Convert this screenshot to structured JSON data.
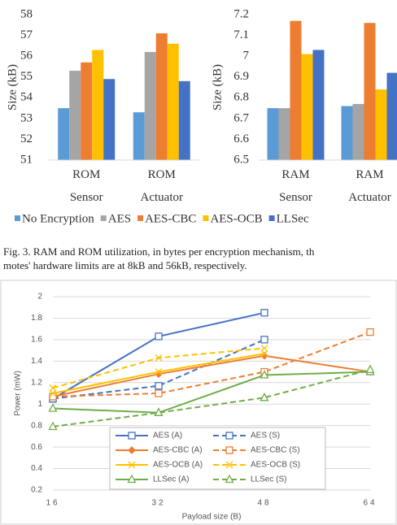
{
  "chart_data": [
    {
      "type": "bar",
      "ylabel": "Size (kB)",
      "categories": [
        "ROM\nSensor",
        "ROM\nActuator"
      ],
      "ylim": [
        51,
        58
      ],
      "yticks": [
        51,
        52,
        53,
        54,
        55,
        56,
        57,
        58
      ],
      "series": [
        {
          "name": "No Encryption",
          "color": "#5b9bd5",
          "values": [
            53.5,
            53.3
          ]
        },
        {
          "name": "AES",
          "color": "#a5a5a5",
          "values": [
            55.3,
            56.2
          ]
        },
        {
          "name": "AES-CBC",
          "color": "#ed7d31",
          "values": [
            55.7,
            57.1
          ]
        },
        {
          "name": "AES-OCB",
          "color": "#ffc000",
          "values": [
            56.3,
            56.6
          ]
        },
        {
          "name": "LLSec",
          "color": "#4472c4",
          "values": [
            54.9,
            54.8
          ]
        }
      ]
    },
    {
      "type": "bar",
      "ylabel": "Size (kB)",
      "categories": [
        "RAM\nSensor",
        "RAM\nActuator"
      ],
      "ylim": [
        6.5,
        7.2
      ],
      "yticks": [
        6.5,
        6.6,
        6.7,
        6.8,
        6.9,
        7,
        7.1,
        7.2
      ],
      "series": [
        {
          "color": "#5b9bd5",
          "values": [
            6.75,
            6.76
          ]
        },
        {
          "color": "#a5a5a5",
          "values": [
            6.75,
            6.77
          ]
        },
        {
          "color": "#ed7d31",
          "values": [
            7.17,
            7.16
          ]
        },
        {
          "color": "#ffc000",
          "values": [
            7.01,
            6.84
          ]
        },
        {
          "color": "#4472c4",
          "values": [
            7.03,
            6.92
          ]
        }
      ]
    },
    {
      "type": "line",
      "xlabel": "Payload size (B)",
      "ylabel": "Power (mW)",
      "categories": [
        "16",
        "32",
        "48",
        "64"
      ],
      "ylim": [
        0.2,
        2
      ],
      "yticks": [
        0.2,
        0.4,
        0.6,
        0.8,
        1,
        1.2,
        1.4,
        1.6,
        1.8,
        2
      ],
      "grid": true,
      "series": [
        {
          "name": "AES (A)",
          "color": "#4472c4",
          "marker": "square",
          "dashed": false,
          "values": [
            1.05,
            1.63,
            1.85,
            null
          ]
        },
        {
          "name": "AES (S)",
          "color": "#4472c4",
          "marker": "square",
          "dashed": true,
          "values": [
            1.05,
            1.17,
            1.6,
            null
          ]
        },
        {
          "name": "AES-CBC (A)",
          "color": "#ed7d31",
          "marker": "diamond",
          "dashed": false,
          "values": [
            1.07,
            1.28,
            1.45,
            1.3
          ]
        },
        {
          "name": "AES-CBC (S)",
          "color": "#ed7d31",
          "marker": "square",
          "dashed": true,
          "values": [
            1.07,
            1.1,
            1.3,
            1.67
          ]
        },
        {
          "name": "AES-OCB (A)",
          "color": "#ffc000",
          "marker": "x",
          "dashed": false,
          "values": [
            1.1,
            1.3,
            1.47,
            null
          ]
        },
        {
          "name": "AES-OCB (S)",
          "color": "#ffc000",
          "marker": "x",
          "dashed": true,
          "values": [
            1.15,
            1.43,
            1.52,
            null
          ]
        },
        {
          "name": "LLSec (A)",
          "color": "#70ad47",
          "marker": "triangle",
          "dashed": false,
          "values": [
            0.96,
            0.92,
            1.27,
            1.3
          ]
        },
        {
          "name": "LLSec (S)",
          "color": "#70ad47",
          "marker": "triangle",
          "dashed": true,
          "values": [
            0.79,
            0.92,
            1.06,
            1.32
          ]
        }
      ]
    }
  ],
  "caption": [
    "Fig. 3. RAM and ROM utilization, in bytes per encryption mechanism, th",
    "motes' hardware limits are at 8kB and 56kB, respectively."
  ]
}
